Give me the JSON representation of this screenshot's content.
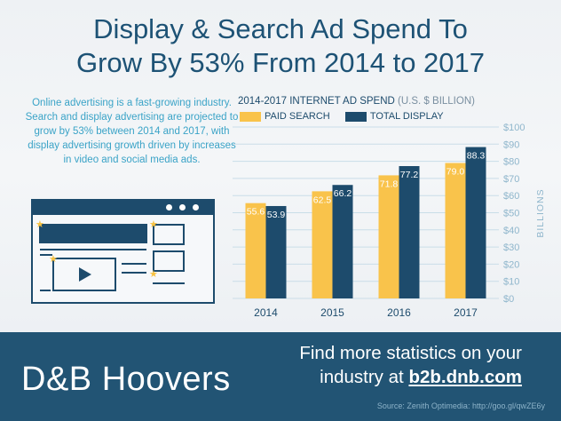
{
  "title": {
    "line1": "Display & Search Ad Spend To",
    "line2": "Grow By 53% From 2014 to 2017"
  },
  "intro": "Online advertising is a fast-growing industry. Search and display advertising are projected to grow by 53% between 2014 and 2017, with display advertising growth driven by increases in video and social media ads.",
  "chart_data": {
    "type": "bar",
    "title": "2014-2017 INTERNET AD SPEND",
    "subtitle": "(U.S. $ BILLION)",
    "categories": [
      "2014",
      "2015",
      "2016",
      "2017"
    ],
    "series": [
      {
        "name": "PAID SEARCH",
        "color": "#f9c34b",
        "values": [
          55.6,
          62.5,
          71.8,
          79.0
        ],
        "labels": [
          "55.6",
          "62.5",
          "71.8",
          "79.0"
        ]
      },
      {
        "name": "TOTAL DISPLAY",
        "color": "#1d4b6c",
        "values": [
          53.9,
          66.2,
          77.2,
          88.3
        ],
        "labels": [
          "53.9",
          "66.2",
          "77.2",
          "88.3"
        ]
      }
    ],
    "ylabel": "BILLIONS",
    "ylim": [
      0,
      100
    ],
    "yticks": [
      "$0",
      "$10",
      "$20",
      "$30",
      "$40",
      "$50",
      "$60",
      "$70",
      "$80",
      "$90",
      "$100"
    ],
    "grid": true,
    "legend": "top-left"
  },
  "footer": {
    "logo": "D&B Hoovers",
    "cta_line1": "Find more statistics on your",
    "cta_line2": "industry at",
    "cta_link": "b2b.dnb.com",
    "source": "Source: Zenith Optimedia: http://goo.gl/qwZE6y"
  },
  "icons": [
    "browser-illustration-icon",
    "star-icon",
    "play-icon"
  ]
}
